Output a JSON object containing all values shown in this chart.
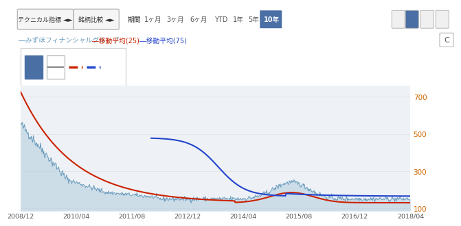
{
  "bg_color": "#ffffff",
  "toolbar_bg": "#f5f5f5",
  "toolbar_border": "#cccccc",
  "toolbar_text_color": "#333333",
  "toolbar_btn1": "テクニカル指標",
  "toolbar_btn2": "銘柄比較",
  "period_label": "期間",
  "period_buttons": [
    "1ヶ月",
    "3ヶ月",
    "6ヶ月",
    "YTD",
    "1年",
    "5年",
    "10年"
  ],
  "active_period": "10年",
  "active_color": "#4a6fa5",
  "legend_label1": "―みずほフィナンシャルグループ",
  "legend_label2": "―移動平均(25)",
  "legend_label3": "―移動平均(75)",
  "area_fill_color": "#b8cfe0",
  "area_line_color": "#6699bb",
  "ma25_color": "#cc2200",
  "ma75_color": "#2244cc",
  "y_axis_color": "#cc6600",
  "y_ticks": [
    100,
    300,
    500,
    700
  ],
  "y_min": 85,
  "y_max": 760,
  "x_labels": [
    "2008/12",
    "2010/04",
    "2011/08",
    "2012/12",
    "2014/04",
    "2015/08",
    "2016/12",
    "2018/04"
  ],
  "grid_color": "#e0e0e0",
  "chart_bg": "#eef2f6"
}
